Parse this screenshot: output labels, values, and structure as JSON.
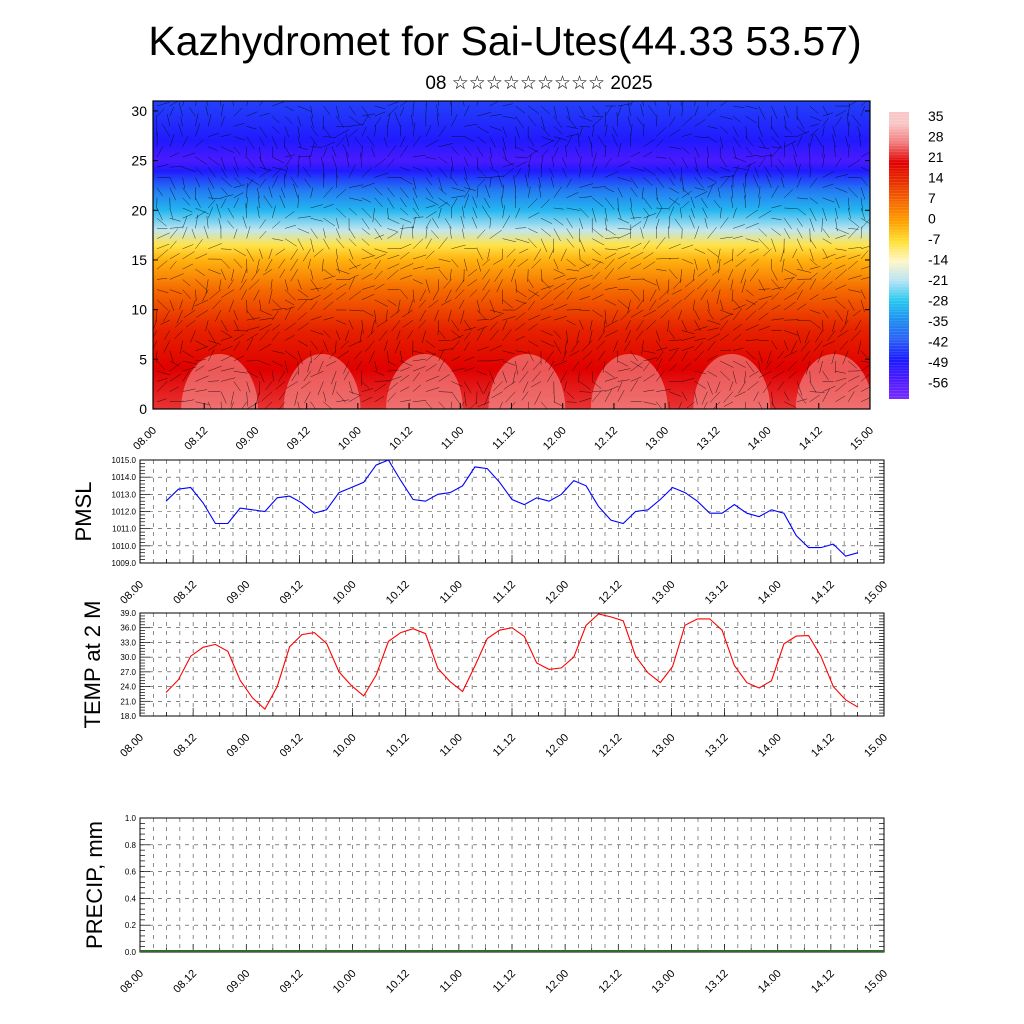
{
  "title": "Kazhydromet for Sai-Utes(44.33 53.57)",
  "subtitle": "08 ☆☆☆☆☆☆☆☆☆ 2025",
  "time_ticks": [
    "08.00",
    "08.12",
    "09.00",
    "09.12",
    "10.00",
    "10.12",
    "11.00",
    "11.12",
    "12.00",
    "12.12",
    "13.00",
    "13.12",
    "14.00",
    "14.12",
    "15.00"
  ],
  "colors": {
    "pmsl_line": "#0000ff",
    "temp_line": "#ff0000",
    "precip_baseline": "#2e6b2e",
    "colorbar_top": "#f5b3b3",
    "colorbar_mid_red": "#e00000",
    "colorbar_yellow": "#ffe033",
    "colorbar_cyan": "#28c8f0",
    "colorbar_blue": "#1a1aff",
    "colorbar_bottom": "#7a2cff"
  },
  "chart_data": [
    {
      "id": "cross-section",
      "type": "heatmap",
      "title": "",
      "ylim": [
        0,
        31
      ],
      "y_ticks": [
        "0",
        "5",
        "10",
        "15",
        "20",
        "25",
        "30"
      ],
      "x_ticks": [
        "08.00",
        "08.12",
        "09.00",
        "09.12",
        "10.00",
        "10.12",
        "11.00",
        "11.12",
        "12.00",
        "12.12",
        "13.00",
        "13.12",
        "14.00",
        "14.12",
        "15.00"
      ],
      "colorbar_labels": [
        "35",
        "28",
        "21",
        "14",
        "7",
        "0",
        "-7",
        "-14",
        "-21",
        "-28",
        "-35",
        "-42",
        "-49",
        "-56"
      ],
      "overlay": "wind vectors",
      "level_profile": [
        {
          "level": 0,
          "value": 24
        },
        {
          "level": 4,
          "value": 21
        },
        {
          "level": 8,
          "value": 16
        },
        {
          "level": 12,
          "value": 7
        },
        {
          "level": 15,
          "value": -2
        },
        {
          "level": 16.5,
          "value": -8
        },
        {
          "level": 18,
          "value": -20
        },
        {
          "level": 20,
          "value": -30
        },
        {
          "level": 22,
          "value": -38
        },
        {
          "level": 24,
          "value": -50
        },
        {
          "level": 25,
          "value": -56
        },
        {
          "level": 27,
          "value": -50
        },
        {
          "level": 31,
          "value": -45
        }
      ]
    },
    {
      "id": "pmsl",
      "type": "line",
      "ylabel": "PMSL",
      "ylim": [
        1009.0,
        1015.0
      ],
      "y_ticks": [
        "1009.0",
        "1010.0",
        "1011.0",
        "1012.0",
        "1013.0",
        "1014.0",
        "1015.0"
      ],
      "x_ticks": [
        "08.00",
        "08.12",
        "09.00",
        "09.12",
        "10.00",
        "10.12",
        "11.00",
        "11.12",
        "12.00",
        "12.12",
        "13.00",
        "13.12",
        "14.00",
        "14.12",
        "15.00"
      ],
      "grid": true,
      "values": [
        1012.6,
        1013.3,
        1013.4,
        1012.5,
        1011.3,
        1011.3,
        1012.2,
        1012.1,
        1012.0,
        1012.8,
        1012.9,
        1012.5,
        1011.9,
        1012.1,
        1013.1,
        1013.4,
        1013.7,
        1014.7,
        1015.0,
        1013.8,
        1012.7,
        1012.6,
        1013.0,
        1013.1,
        1013.5,
        1014.6,
        1014.5,
        1013.7,
        1012.7,
        1012.4,
        1012.8,
        1012.6,
        1013.0,
        1013.8,
        1013.5,
        1012.3,
        1011.5,
        1011.3,
        1012.0,
        1012.1,
        1012.7,
        1013.4,
        1013.1,
        1012.6,
        1011.9,
        1011.9,
        1012.4,
        1011.9,
        1011.7,
        1012.1,
        1011.9,
        1010.6,
        1009.9,
        1009.9,
        1010.1,
        1009.4,
        1009.6
      ]
    },
    {
      "id": "temp",
      "type": "line",
      "ylabel": "TEMP at 2 M",
      "ylim": [
        18.0,
        39.0
      ],
      "y_ticks": [
        "18.0",
        "21.0",
        "24.0",
        "27.0",
        "30.0",
        "33.0",
        "36.0",
        "39.0"
      ],
      "x_ticks": [
        "08.00",
        "08.12",
        "09.00",
        "09.12",
        "10.00",
        "10.12",
        "11.00",
        "11.12",
        "12.00",
        "12.12",
        "13.00",
        "13.12",
        "14.00",
        "14.12",
        "15.00"
      ],
      "grid": true,
      "values": [
        22.8,
        25.4,
        30.2,
        32.0,
        32.6,
        31.2,
        25.3,
        21.7,
        19.4,
        24.0,
        32.1,
        34.6,
        35.0,
        32.8,
        27.0,
        24.2,
        22.1,
        26.3,
        33.2,
        35.0,
        35.8,
        34.8,
        27.7,
        25.0,
        23.0,
        28.2,
        33.8,
        35.5,
        36.0,
        34.2,
        28.8,
        27.5,
        27.8,
        30.0,
        36.5,
        38.8,
        38.2,
        37.4,
        30.2,
        26.8,
        24.8,
        28.1,
        36.5,
        37.8,
        37.8,
        35.5,
        28.3,
        24.8,
        23.7,
        25.2,
        32.7,
        34.3,
        34.4,
        30.2,
        24.0,
        21.3,
        19.8
      ]
    },
    {
      "id": "precip",
      "type": "bar",
      "ylabel": "PRECIP, mm",
      "ylim": [
        0.0,
        1.0
      ],
      "y_ticks": [
        "0.0",
        "0.2",
        "0.4",
        "0.6",
        "0.8",
        "1.0"
      ],
      "x_ticks": [
        "08.00",
        "08.12",
        "09.00",
        "09.12",
        "10.00",
        "10.12",
        "11.00",
        "11.12",
        "12.00",
        "12.12",
        "13.00",
        "13.12",
        "14.00",
        "14.12",
        "15.00"
      ],
      "grid": true,
      "values": [
        0,
        0,
        0,
        0,
        0,
        0,
        0,
        0,
        0,
        0,
        0,
        0,
        0,
        0,
        0,
        0,
        0,
        0,
        0,
        0,
        0,
        0,
        0,
        0,
        0,
        0,
        0,
        0,
        0,
        0,
        0,
        0,
        0,
        0,
        0,
        0,
        0,
        0,
        0,
        0,
        0,
        0,
        0,
        0,
        0,
        0,
        0,
        0,
        0,
        0,
        0,
        0,
        0,
        0,
        0,
        0,
        0
      ]
    }
  ]
}
